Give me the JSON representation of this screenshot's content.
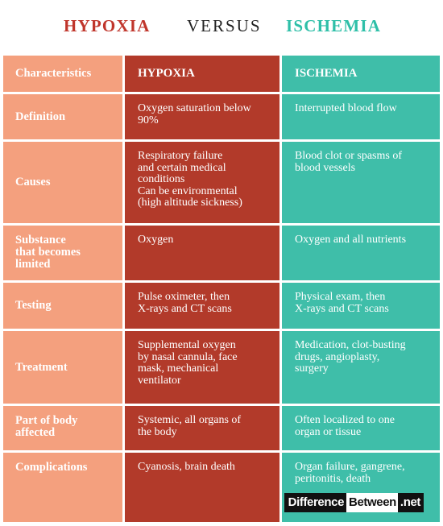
{
  "title": {
    "left": "HYPOXIA",
    "middle": "VERSUS",
    "right": "ISCHEMIA"
  },
  "header": {
    "characteristics": "Characteristics",
    "col_a": "HYPOXIA",
    "col_b": "ISCHEMIA"
  },
  "rows": [
    {
      "label": "Definition",
      "a": [
        "Oxygen saturation below",
        "90%"
      ],
      "b": [
        "Interrupted blood flow"
      ]
    },
    {
      "label": "Causes",
      "a": [
        "Respiratory failure",
        "and certain medical",
        "conditions",
        "Can be environmental",
        "(high altitude sickness)"
      ],
      "b": [
        "Blood clot or spasms of",
        "blood vessels"
      ]
    },
    {
      "label": [
        "Substance",
        "that becomes",
        "limited"
      ],
      "a": [
        "Oxygen"
      ],
      "b": [
        "Oxygen and all nutrients"
      ]
    },
    {
      "label": "Testing",
      "a": [
        "Pulse oximeter, then",
        "X-rays and CT scans"
      ],
      "b": [
        "Physical exam, then",
        "X-rays and CT scans"
      ]
    },
    {
      "label": "Treatment",
      "a": [
        "Supplemental oxygen",
        "by nasal cannula, face",
        "mask, mechanical",
        "ventilator"
      ],
      "b": [
        "Medication, clot-busting",
        "drugs, angioplasty,",
        "surgery"
      ]
    },
    {
      "label": [
        "Part of body",
        "affected"
      ],
      "a": [
        "Systemic, all organs of",
        "the body"
      ],
      "b": [
        "Often localized to one",
        "organ or tissue"
      ]
    },
    {
      "label": "Complications",
      "a": [
        "Cyanosis, brain death"
      ],
      "b": [
        "Organ failure, gangrene,",
        "peritonitis, death"
      ]
    }
  ],
  "logo": {
    "part1": "Difference",
    "part2": "Between",
    "part3": ".net"
  },
  "colors": {
    "hypoxia": "#b23a2a",
    "ischemia": "#3fbea9",
    "characteristics": "#f4a07e",
    "title_hypoxia": "#c0362c",
    "title_ischemia": "#2ebfa8"
  }
}
